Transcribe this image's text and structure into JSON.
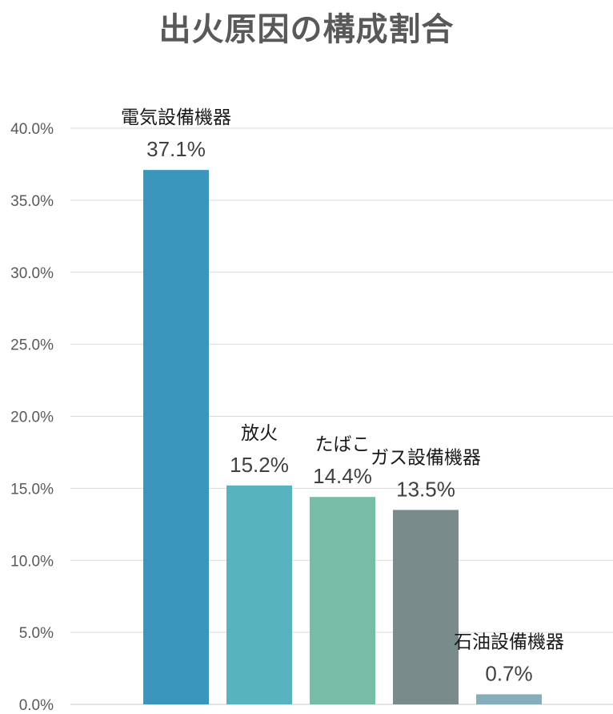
{
  "chart_data": {
    "type": "bar",
    "title": "出火原因の構成割合",
    "categories": [
      "電気設備機器",
      "放火",
      "たばこ",
      "ガス設備機器",
      "石油設備機器"
    ],
    "values": [
      37.1,
      15.2,
      14.4,
      13.5,
      0.7
    ],
    "value_labels": [
      "37.1%",
      "15.2%",
      "14.4%",
      "13.5%",
      "0.7%"
    ],
    "colors": [
      "#3a96bd",
      "#57b3bd",
      "#76bca7",
      "#7a8b8c",
      "#86aeba"
    ],
    "yticks": [
      "0.0%",
      "5.0%",
      "10.0%",
      "15.0%",
      "20.0%",
      "25.0%",
      "30.0%",
      "35.0%",
      "40.0%"
    ],
    "ylim": [
      0,
      40
    ],
    "ytick_step": 5,
    "grid": true,
    "xlabel": "",
    "ylabel": ""
  }
}
